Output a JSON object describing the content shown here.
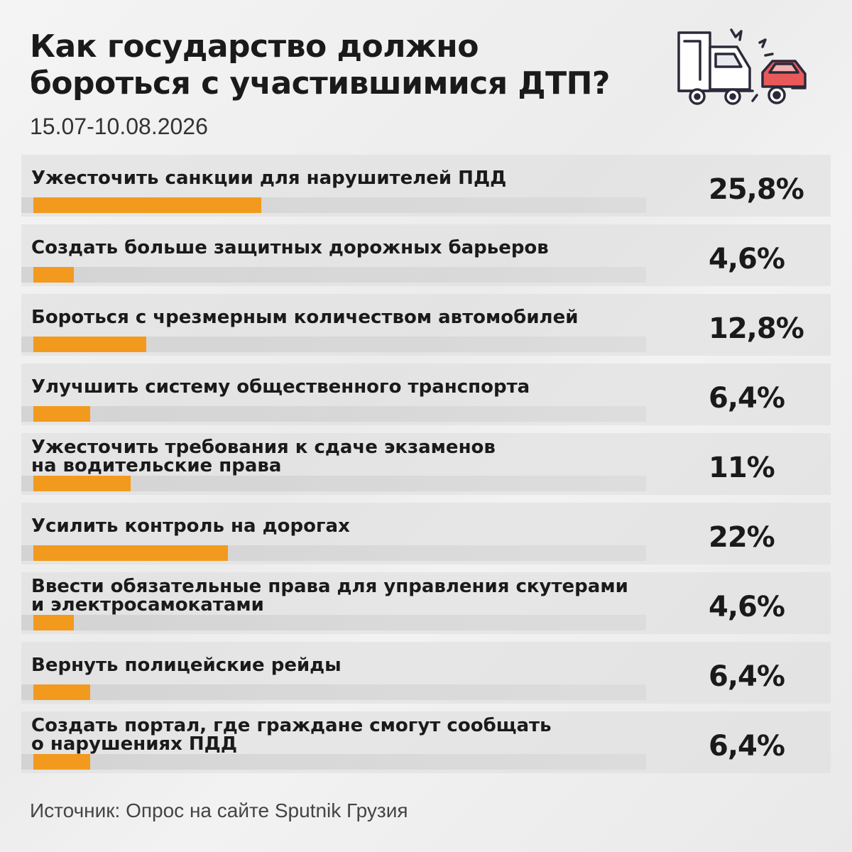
{
  "header": {
    "title_line1": "Как государство должно",
    "title_line2": "бороться с участившимися ДТП?",
    "period": "15.07-10.08.2026"
  },
  "icon": {
    "name": "truck-car-crash-icon",
    "accent": "#e85a5a",
    "outline": "#2a2a3a"
  },
  "colors": {
    "bar": "#f29a1e",
    "text": "#1a1a1a"
  },
  "chart_data": {
    "type": "bar",
    "orientation": "horizontal",
    "title": "Как государство должно бороться с участившимися ДТП?",
    "subtitle": "15.07-10.08.2026",
    "unit": "%",
    "xlim": [
      0,
      70
    ],
    "categories": [
      [
        "Ужесточить санкции для нарушителей ПДД"
      ],
      [
        "Создать больше защитных дорожных барьеров"
      ],
      [
        "Бороться с чрезмерным количеством автомобилей"
      ],
      [
        "Улучшить систему общественного транспорта"
      ],
      [
        "Ужесточить требования к сдаче экзаменов",
        "на водительские права"
      ],
      [
        "Усилить контроль на дорогах"
      ],
      [
        "Ввести обязательные права для управления скутерами",
        "и электросамокатами"
      ],
      [
        "Вернуть полицейские рейды"
      ],
      [
        "Создать портал, где граждане смогут сообщать",
        "о нарушениях ПДД"
      ]
    ],
    "values": [
      25.8,
      4.6,
      12.8,
      6.4,
      11,
      22,
      4.6,
      6.4,
      6.4
    ],
    "value_labels": [
      "25,8%",
      "4,6%",
      "12,8%",
      "6,4%",
      "11%",
      "22%",
      "4,6%",
      "6,4%",
      "6,4%"
    ]
  },
  "footer": {
    "source": "Источник: Опрос на сайте Sputnik Грузия"
  }
}
